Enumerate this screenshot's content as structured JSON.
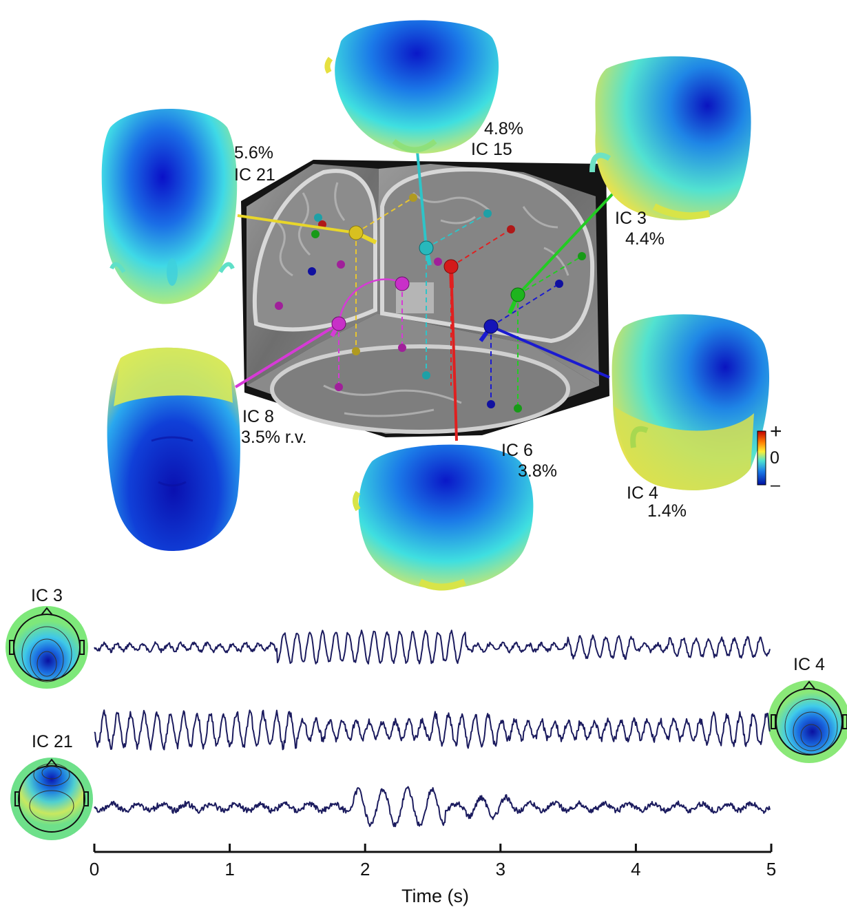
{
  "components": [
    {
      "id": "ic21",
      "name": "IC 21",
      "rv": "5.6%",
      "color": "#e8d62a"
    },
    {
      "id": "ic15",
      "name": "IC 15",
      "rv": "4.8%",
      "color": "#2ec4c8"
    },
    {
      "id": "ic3",
      "name": "IC 3",
      "rv": "4.4%",
      "color": "#22cc22"
    },
    {
      "id": "ic8",
      "name": "IC 8",
      "rv": "3.5% r.v.",
      "color": "#d63ad6"
    },
    {
      "id": "ic6",
      "name": "IC 6",
      "rv": "3.8%",
      "color": "#e02020"
    },
    {
      "id": "ic4",
      "name": "IC 4",
      "rv": "1.4%",
      "color": "#1a1ad0"
    }
  ],
  "colorbar": {
    "plus": "+",
    "zero": "0",
    "minus": "–"
  },
  "traces": {
    "labels": {
      "trace1": "IC 3",
      "trace2": "IC 4",
      "trace3": "IC 21"
    },
    "line_color": "#1b1b5e"
  },
  "time_axis": {
    "title": "Time (s)",
    "ticks": [
      "0",
      "1",
      "2",
      "3",
      "4",
      "5"
    ],
    "range": [
      0,
      5
    ]
  }
}
